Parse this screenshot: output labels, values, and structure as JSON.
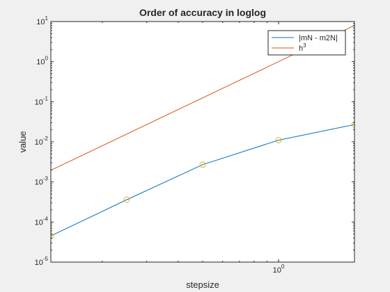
{
  "chart_data": {
    "type": "line",
    "title": "Order of accuracy in loglog",
    "xlabel": "stepsize",
    "ylabel": "value",
    "xscale": "log",
    "yscale": "log",
    "xlim": [
      0.125,
      2
    ],
    "ylim": [
      1e-05,
      10
    ],
    "grid": false,
    "legend_position": "top-right",
    "x_ticks": [
      {
        "value": 1,
        "base": "10",
        "exp": "0"
      }
    ],
    "y_ticks": [
      {
        "value": 1e-05,
        "base": "10",
        "exp": "-5"
      },
      {
        "value": 0.0001,
        "base": "10",
        "exp": "-4"
      },
      {
        "value": 0.001,
        "base": "10",
        "exp": "-3"
      },
      {
        "value": 0.01,
        "base": "10",
        "exp": "-2"
      },
      {
        "value": 0.1,
        "base": "10",
        "exp": "-1"
      },
      {
        "value": 1,
        "base": "10",
        "exp": "0"
      },
      {
        "value": 10,
        "base": "10",
        "exp": "1"
      }
    ],
    "series": [
      {
        "name": "|mN - m2N|",
        "color": "#0072bd",
        "marker_color": "#edb120",
        "marker": "circle",
        "x": [
          0.125,
          0.25,
          0.5,
          1,
          2
        ],
        "y": [
          4.5e-05,
          0.00036,
          0.0027,
          0.011,
          0.027
        ]
      },
      {
        "name": "h",
        "name_sup": "3",
        "color": "#d95319",
        "marker": "none",
        "x": [
          0.125,
          2
        ],
        "y": [
          0.00195,
          8
        ]
      }
    ]
  }
}
